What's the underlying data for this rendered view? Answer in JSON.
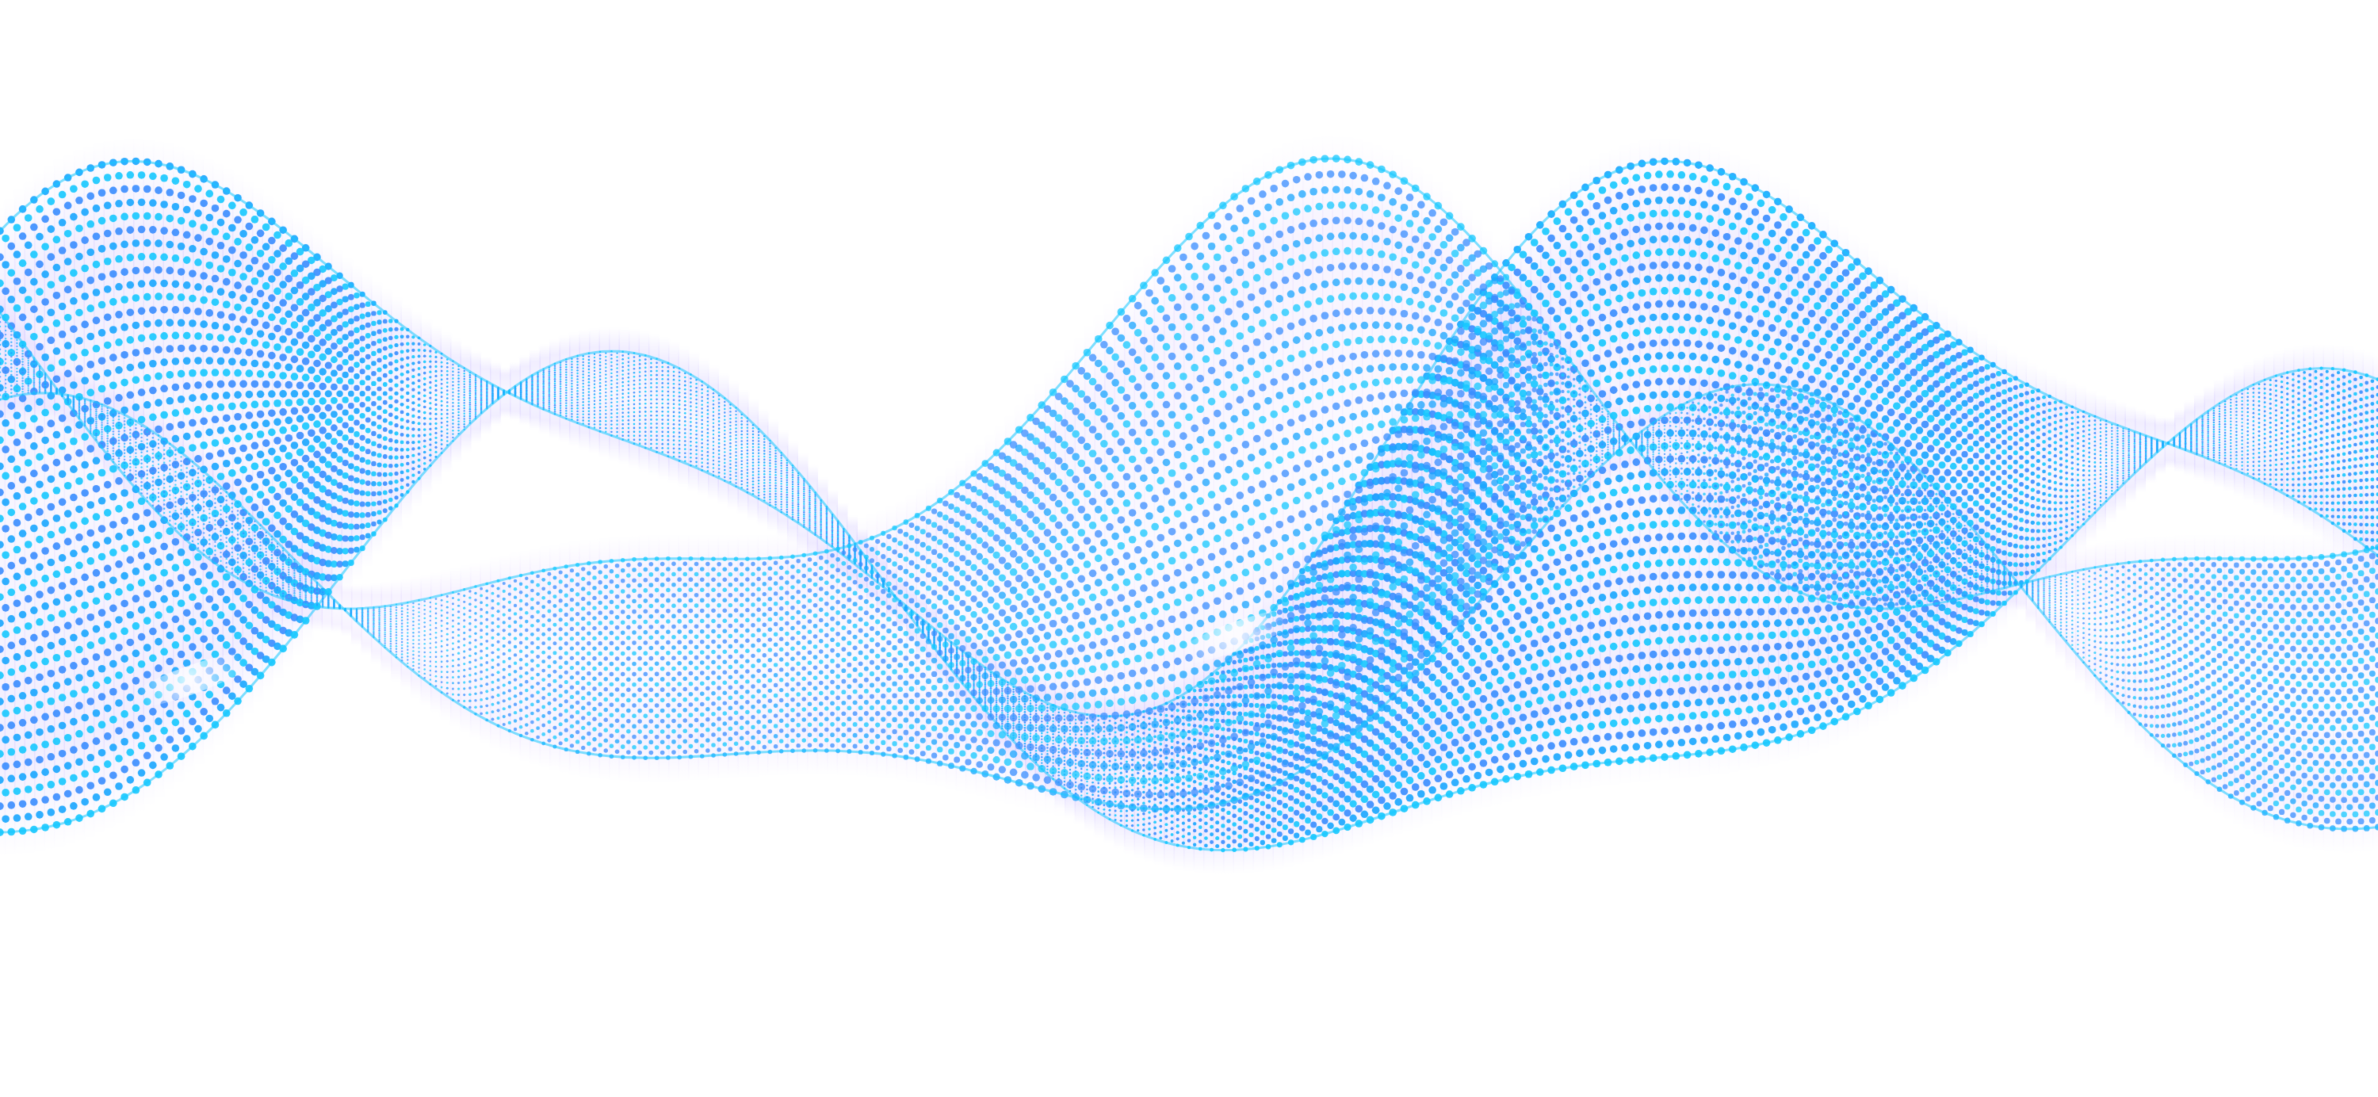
{
  "artwork": {
    "subject": "abstract-particle-wave",
    "background_color": "#ffffff",
    "dot_colors": [
      "#1aa6ff",
      "#16c8ff",
      "#3a8dff"
    ],
    "glow_colors": [
      "#7b5cff",
      "#b18cff",
      "#5fd0ff"
    ],
    "highlight_color": "#ffffff",
    "text": []
  }
}
